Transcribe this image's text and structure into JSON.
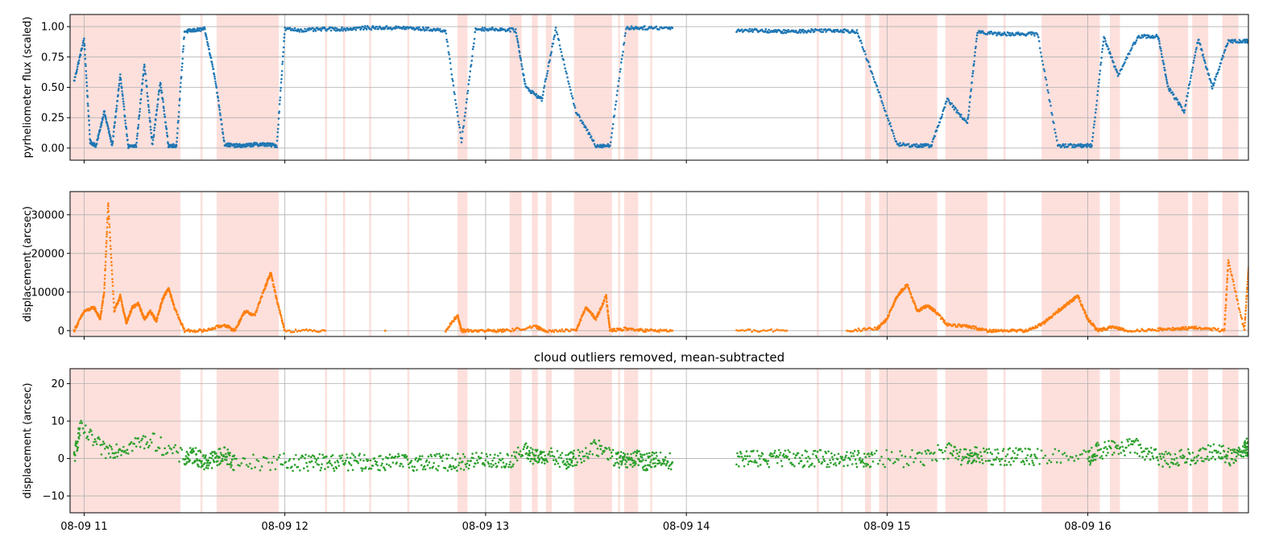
{
  "shared_x": {
    "ticks": [
      "08-09 11",
      "08-09 12",
      "08-09 13",
      "08-09 14",
      "08-09 15",
      "08-09 16"
    ],
    "tick_hours": [
      11,
      12,
      13,
      14,
      15,
      16
    ],
    "xlim_hours": [
      10.93,
      16.8
    ]
  },
  "cloud_intervals_hours": [
    [
      10.93,
      11.48
    ],
    [
      11.58,
      11.59
    ],
    [
      11.66,
      11.97
    ],
    [
      12.2,
      12.21
    ],
    [
      12.29,
      12.3
    ],
    [
      12.42,
      12.43
    ],
    [
      12.61,
      12.62
    ],
    [
      12.86,
      12.91
    ],
    [
      13.12,
      13.18
    ],
    [
      13.23,
      13.26
    ],
    [
      13.3,
      13.33
    ],
    [
      13.44,
      13.63
    ],
    [
      13.66,
      13.67
    ],
    [
      13.69,
      13.76
    ],
    [
      13.82,
      13.83
    ],
    [
      14.65,
      14.66
    ],
    [
      14.77,
      14.78
    ],
    [
      14.89,
      14.92
    ],
    [
      14.96,
      15.25
    ],
    [
      15.29,
      15.5
    ],
    [
      15.58,
      15.59
    ],
    [
      15.77,
      16.06
    ],
    [
      16.11,
      16.16
    ],
    [
      16.35,
      16.5
    ],
    [
      16.52,
      16.6
    ],
    [
      16.67,
      16.75
    ]
  ],
  "colors": {
    "flux": "#1f77b4",
    "raw": "#ff7f0e",
    "clean": "#2ca02c",
    "shade": "#fde0dc",
    "grid": "#b0b0b0"
  },
  "chart_data": [
    {
      "type": "scatter",
      "title": "",
      "ylabel": "pyrheliometer flux (scaled)",
      "ylim": [
        -0.1,
        1.1
      ],
      "yticks": [
        0,
        0.25,
        0.5,
        0.75,
        1
      ],
      "ytick_labels": [
        "0.00",
        "0.25",
        "0.50",
        "0.75",
        "1.00"
      ],
      "grid": true,
      "series": [
        {
          "x": [
            10.95,
            11.0,
            11.03,
            11.06,
            11.1,
            11.14,
            11.18,
            11.22,
            11.26,
            11.3,
            11.34,
            11.38,
            11.42,
            11.46,
            11.5,
            11.55,
            11.6,
            11.65,
            11.7,
            11.75,
            11.8,
            11.85,
            11.9,
            11.96,
            12.0,
            12.1,
            12.2,
            12.3,
            12.4,
            12.5,
            12.6,
            12.7,
            12.8,
            12.88,
            12.95,
            13.05,
            13.15,
            13.2,
            13.28,
            13.35,
            13.45,
            13.55,
            13.62,
            13.7,
            13.8,
            13.93,
            14.25,
            14.35,
            14.45,
            14.55,
            14.65,
            14.75,
            14.85,
            14.95,
            15.05,
            15.15,
            15.22,
            15.3,
            15.4,
            15.45,
            15.55,
            15.65,
            15.75,
            15.85,
            15.95,
            16.02,
            16.08,
            16.15,
            16.25,
            16.35,
            16.4,
            16.48,
            16.55,
            16.62,
            16.7,
            16.78
          ],
          "y": [
            0.55,
            0.9,
            0.05,
            0.02,
            0.3,
            0.02,
            0.6,
            0.01,
            0.02,
            0.7,
            0.02,
            0.55,
            0.02,
            0.02,
            0.96,
            0.97,
            0.98,
            0.6,
            0.03,
            0.02,
            0.02,
            0.03,
            0.03,
            0.02,
            0.98,
            0.97,
            0.98,
            0.98,
            0.99,
            0.99,
            0.99,
            0.98,
            0.97,
            0.05,
            0.98,
            0.98,
            0.97,
            0.5,
            0.4,
            0.98,
            0.3,
            0.02,
            0.02,
            0.99,
            0.99,
            0.99,
            0.97,
            0.97,
            0.96,
            0.96,
            0.97,
            0.97,
            0.96,
            0.5,
            0.03,
            0.02,
            0.02,
            0.4,
            0.2,
            0.96,
            0.94,
            0.94,
            0.94,
            0.02,
            0.02,
            0.02,
            0.92,
            0.6,
            0.92,
            0.92,
            0.5,
            0.3,
            0.9,
            0.5,
            0.88,
            0.88
          ]
        }
      ]
    },
    {
      "type": "scatter",
      "title": "",
      "ylabel": "displacement (arcsec)",
      "ylim": [
        -1500,
        36000
      ],
      "yticks": [
        0,
        10000,
        20000,
        30000
      ],
      "ytick_labels": [
        "0",
        "10000",
        "20000",
        "30000"
      ],
      "grid": true,
      "series": [
        {
          "x": [
            10.95,
            11.0,
            11.05,
            11.08,
            11.1,
            11.12,
            11.15,
            11.18,
            11.21,
            11.24,
            11.27,
            11.3,
            11.33,
            11.36,
            11.39,
            11.42,
            11.45,
            11.5,
            11.6,
            11.7,
            11.75,
            11.8,
            11.85,
            11.9,
            11.93,
            11.96,
            12.0,
            12.2,
            12.5,
            12.8,
            12.86,
            12.88,
            12.9,
            13.0,
            13.1,
            13.25,
            13.3,
            13.45,
            13.5,
            13.55,
            13.6,
            13.62,
            13.7,
            13.8,
            13.93,
            14.25,
            14.5,
            14.8,
            14.95,
            15.0,
            15.05,
            15.1,
            15.15,
            15.2,
            15.24,
            15.3,
            15.4,
            15.5,
            15.6,
            15.7,
            15.78,
            15.85,
            15.9,
            15.95,
            16.0,
            16.05,
            16.12,
            16.2,
            16.35,
            16.45,
            16.55,
            16.68,
            16.7,
            16.78,
            16.8
          ],
          "y": [
            0,
            5000,
            6000,
            3000,
            10000,
            33000,
            5000,
            9000,
            2000,
            6000,
            7000,
            3000,
            5000,
            2500,
            8000,
            11000,
            6000,
            0,
            0,
            1500,
            0,
            5000,
            4000,
            11000,
            15000,
            8000,
            0,
            0,
            0,
            0,
            4000,
            0,
            0,
            0,
            0,
            1000,
            0,
            0,
            6000,
            3000,
            9000,
            0,
            500,
            0,
            0,
            0,
            0,
            0,
            500,
            3000,
            9000,
            12000,
            5000,
            6500,
            5000,
            1500,
            1200,
            0,
            0,
            0,
            2000,
            5000,
            7000,
            9000,
            3000,
            0,
            1000,
            0,
            300,
            500,
            800,
            0,
            18000,
            0,
            16000
          ]
        }
      ]
    },
    {
      "type": "scatter",
      "title": "cloud outliers removed, mean-subtracted",
      "ylabel": "displacement (arcsec)",
      "ylim": [
        -14.5,
        24
      ],
      "yticks": [
        -10,
        0,
        10,
        20
      ],
      "ytick_labels": [
        "−10",
        "0",
        "10",
        "20"
      ],
      "grid": true,
      "series": [
        {
          "x": [
            10.95,
            10.98,
            11.1,
            11.2,
            11.33,
            11.5,
            11.55,
            11.6,
            11.65,
            11.7,
            11.75,
            11.97,
            12.1,
            12.2,
            12.3,
            12.4,
            12.5,
            12.6,
            12.7,
            12.8,
            12.9,
            13.0,
            13.1,
            13.2,
            13.25,
            13.3,
            13.4,
            13.44,
            13.55,
            13.65,
            13.7,
            13.75,
            13.8,
            13.85,
            13.93,
            14.25,
            14.35,
            14.45,
            14.55,
            14.65,
            14.75,
            14.85,
            14.93,
            15.15,
            15.3,
            15.4,
            15.45,
            15.55,
            15.65,
            15.75,
            16.0,
            16.05,
            16.15,
            16.25,
            16.35,
            16.45,
            16.55,
            16.65,
            16.72,
            16.78
          ],
          "y": [
            0,
            8,
            2,
            3,
            5,
            0,
            1,
            -1,
            0,
            1,
            -1,
            -1,
            -1,
            -1,
            -1,
            -1,
            -1,
            -1,
            -1,
            -1,
            -1,
            0,
            -1,
            2,
            0,
            1,
            -1,
            0,
            3,
            0,
            -1,
            0,
            -1,
            0,
            -1,
            0,
            0,
            0,
            0,
            0,
            0,
            0,
            0,
            0,
            2,
            0,
            1,
            0.5,
            0.5,
            0.5,
            0,
            2,
            3,
            3,
            0,
            0,
            1,
            2,
            0,
            3
          ]
        }
      ]
    }
  ]
}
